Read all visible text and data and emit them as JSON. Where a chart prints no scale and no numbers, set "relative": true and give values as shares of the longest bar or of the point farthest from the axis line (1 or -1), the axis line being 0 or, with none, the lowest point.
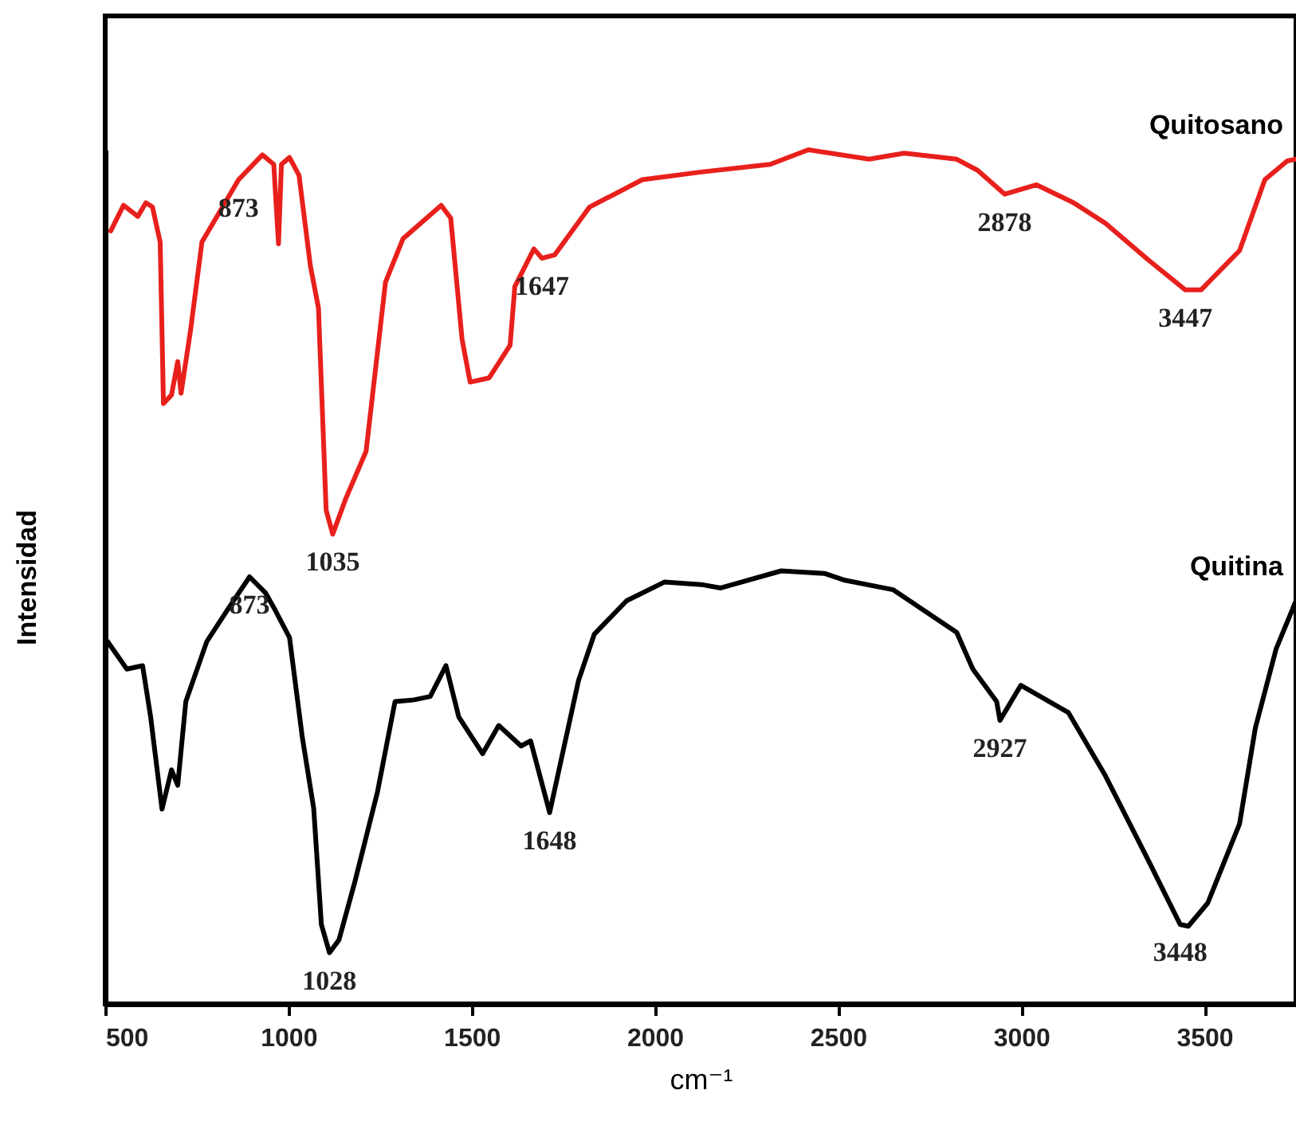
{
  "chart_data": {
    "type": "line",
    "relative": true,
    "xlabel": "cm⁻¹",
    "ylabel": "Intensidad",
    "xlim": [
      500,
      3750
    ],
    "xticks": [
      500,
      1000,
      1500,
      2000,
      2500,
      3000,
      3500
    ],
    "grid": false,
    "legend": false,
    "marker": "none",
    "line_style": "solid",
    "series": [
      {
        "name": "Quitosano",
        "color": "#e8201c",
        "x": [
          515,
          550,
          589,
          611,
          629,
          650,
          659,
          681,
          698,
          707,
          733,
          764,
          864,
          929,
          960,
          973,
          981,
          1003,
          1029,
          1060,
          1082,
          1103,
          1121,
          1156,
          1212,
          1265,
          1313,
          1417,
          1443,
          1474,
          1496,
          1548,
          1605,
          1618,
          1670,
          1692,
          1727,
          1822,
          1966,
          2127,
          2315,
          2419,
          2585,
          2681,
          2824,
          2881,
          2955,
          3042,
          3143,
          3230,
          3347,
          3448,
          3491,
          3596,
          3665,
          3726,
          3750
        ],
        "values": [
          0.905,
          0.935,
          0.922,
          0.938,
          0.933,
          0.892,
          0.703,
          0.713,
          0.752,
          0.715,
          0.789,
          0.892,
          0.965,
          0.994,
          0.983,
          0.89,
          0.983,
          0.991,
          0.97,
          0.864,
          0.815,
          0.578,
          0.55,
          0.591,
          0.647,
          0.845,
          0.896,
          0.935,
          0.92,
          0.778,
          0.728,
          0.733,
          0.771,
          0.84,
          0.884,
          0.873,
          0.877,
          0.933,
          0.965,
          0.974,
          0.983,
          1,
          0.989,
          0.996,
          0.989,
          0.976,
          0.948,
          0.959,
          0.938,
          0.914,
          0.871,
          0.836,
          0.836,
          0.882,
          0.965,
          0.987,
          0.989
        ]
      },
      {
        "name": "Quitina",
        "color": "#000000",
        "x": [
          507,
          559,
          602,
          624,
          655,
          681,
          698,
          720,
          777,
          833,
          894,
          938,
          964,
          1003,
          1038,
          1069,
          1090,
          1112,
          1138,
          1182,
          1243,
          1291,
          1343,
          1387,
          1430,
          1465,
          1530,
          1574,
          1635,
          1661,
          1713,
          1792,
          1835,
          1923,
          2027,
          2127,
          2180,
          2345,
          2463,
          2519,
          2650,
          2824,
          2868,
          2933,
          2942,
          2999,
          3129,
          3230,
          3347,
          3434,
          3456,
          3509,
          3596,
          3639,
          3696,
          3750
        ],
        "values": [
          0.424,
          0.392,
          0.396,
          0.336,
          0.228,
          0.274,
          0.256,
          0.354,
          0.424,
          0.461,
          0.5,
          0.481,
          0.461,
          0.429,
          0.312,
          0.229,
          0.093,
          0.06,
          0.075,
          0.144,
          0.248,
          0.354,
          0.356,
          0.36,
          0.396,
          0.336,
          0.293,
          0.326,
          0.302,
          0.308,
          0.224,
          0.379,
          0.433,
          0.472,
          0.494,
          0.491,
          0.487,
          0.507,
          0.504,
          0.496,
          0.485,
          0.435,
          0.392,
          0.354,
          0.332,
          0.373,
          0.341,
          0.267,
          0.168,
          0.093,
          0.091,
          0.118,
          0.211,
          0.323,
          0.416,
          0.472
        ]
      }
    ],
    "annotations": [
      {
        "text": "873",
        "x": 864,
        "y": 0.965
      },
      {
        "text": "1035",
        "x": 1121,
        "y": 0.55
      },
      {
        "text": "1647",
        "x": 1692,
        "y": 0.873
      },
      {
        "text": "2878",
        "x": 2955,
        "y": 0.948
      },
      {
        "text": "3447",
        "x": 3448,
        "y": 0.836
      },
      {
        "text": "873",
        "x": 894,
        "y": 0.5
      },
      {
        "text": "1028",
        "x": 1112,
        "y": 0.06
      },
      {
        "text": "1648",
        "x": 1713,
        "y": 0.224
      },
      {
        "text": "2927",
        "x": 2942,
        "y": 0.332
      },
      {
        "text": "3448",
        "x": 3434,
        "y": 0.093
      }
    ]
  }
}
